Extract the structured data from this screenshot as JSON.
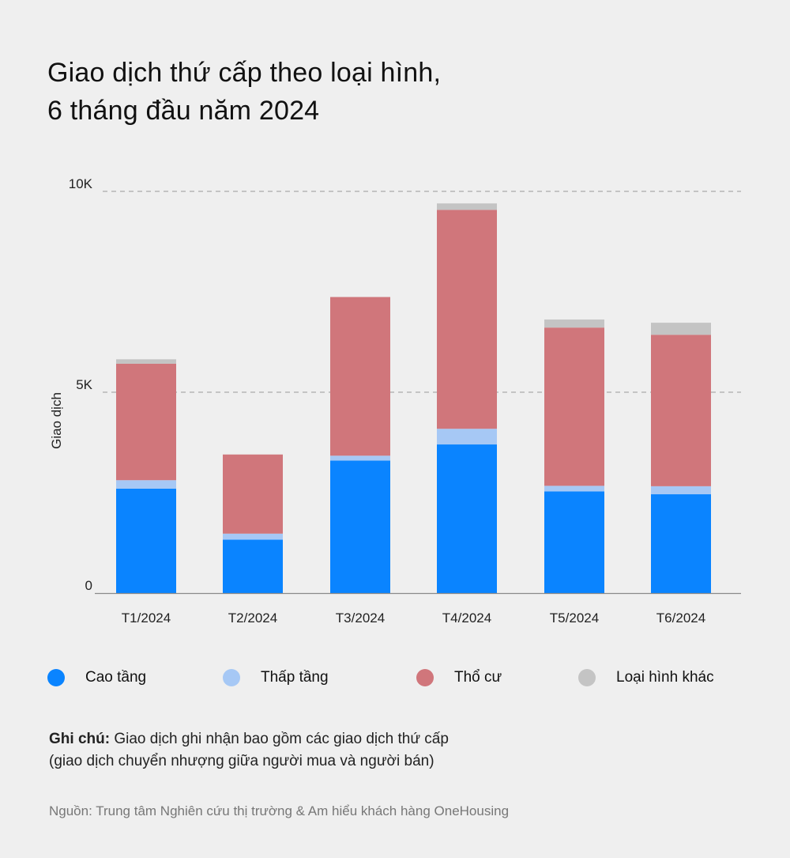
{
  "title_line1": "Giao dịch thứ cấp theo loại hình,",
  "title_line2": "6 tháng đầu năm 2024",
  "note_label": "Ghi chú:",
  "note_line1": " Giao dịch ghi nhận bao gồm các giao dịch thứ cấp",
  "note_line2": "(giao dịch chuyển nhượng giữa người mua và người bán)",
  "source": "Nguồn: Trung tâm Nghiên cứu thị trường & Am hiểu khách hàng OneHousing",
  "legend": [
    {
      "label": "Cao tầng",
      "color": "#0a84ff"
    },
    {
      "label": "Thấp tầng",
      "color": "#a6c8f5"
    },
    {
      "label": "Thổ cư",
      "color": "#d0767b"
    },
    {
      "label": "Loại hình khác",
      "color": "#c4c4c4"
    }
  ],
  "chart_data": {
    "type": "bar",
    "stacked": true,
    "categories": [
      "T1/2024",
      "T2/2024",
      "T3/2024",
      "T4/2024",
      "T5/2024",
      "T6/2024"
    ],
    "series": [
      {
        "name": "Cao tầng",
        "color": "#0a84ff",
        "values": [
          2600,
          1330,
          3300,
          3700,
          2530,
          2460
        ]
      },
      {
        "name": "Thấp tầng",
        "color": "#a6c8f5",
        "values": [
          210,
          150,
          120,
          390,
          140,
          200
        ]
      },
      {
        "name": "Thổ cư",
        "color": "#d0767b",
        "values": [
          2900,
          1970,
          3950,
          5450,
          3940,
          3770
        ]
      },
      {
        "name": "Loại hình khác",
        "color": "#c4c4c4",
        "values": [
          110,
          0,
          0,
          160,
          200,
          300
        ]
      }
    ],
    "ylabel": "Giao dịch",
    "xlabel": "",
    "ylim": [
      0,
      10000
    ],
    "yticks": [
      {
        "value": 0,
        "label": "0"
      },
      {
        "value": 5000,
        "label": "5K"
      },
      {
        "value": 10000,
        "label": "10K"
      }
    ],
    "grid": true,
    "legend_position": "bottom"
  }
}
